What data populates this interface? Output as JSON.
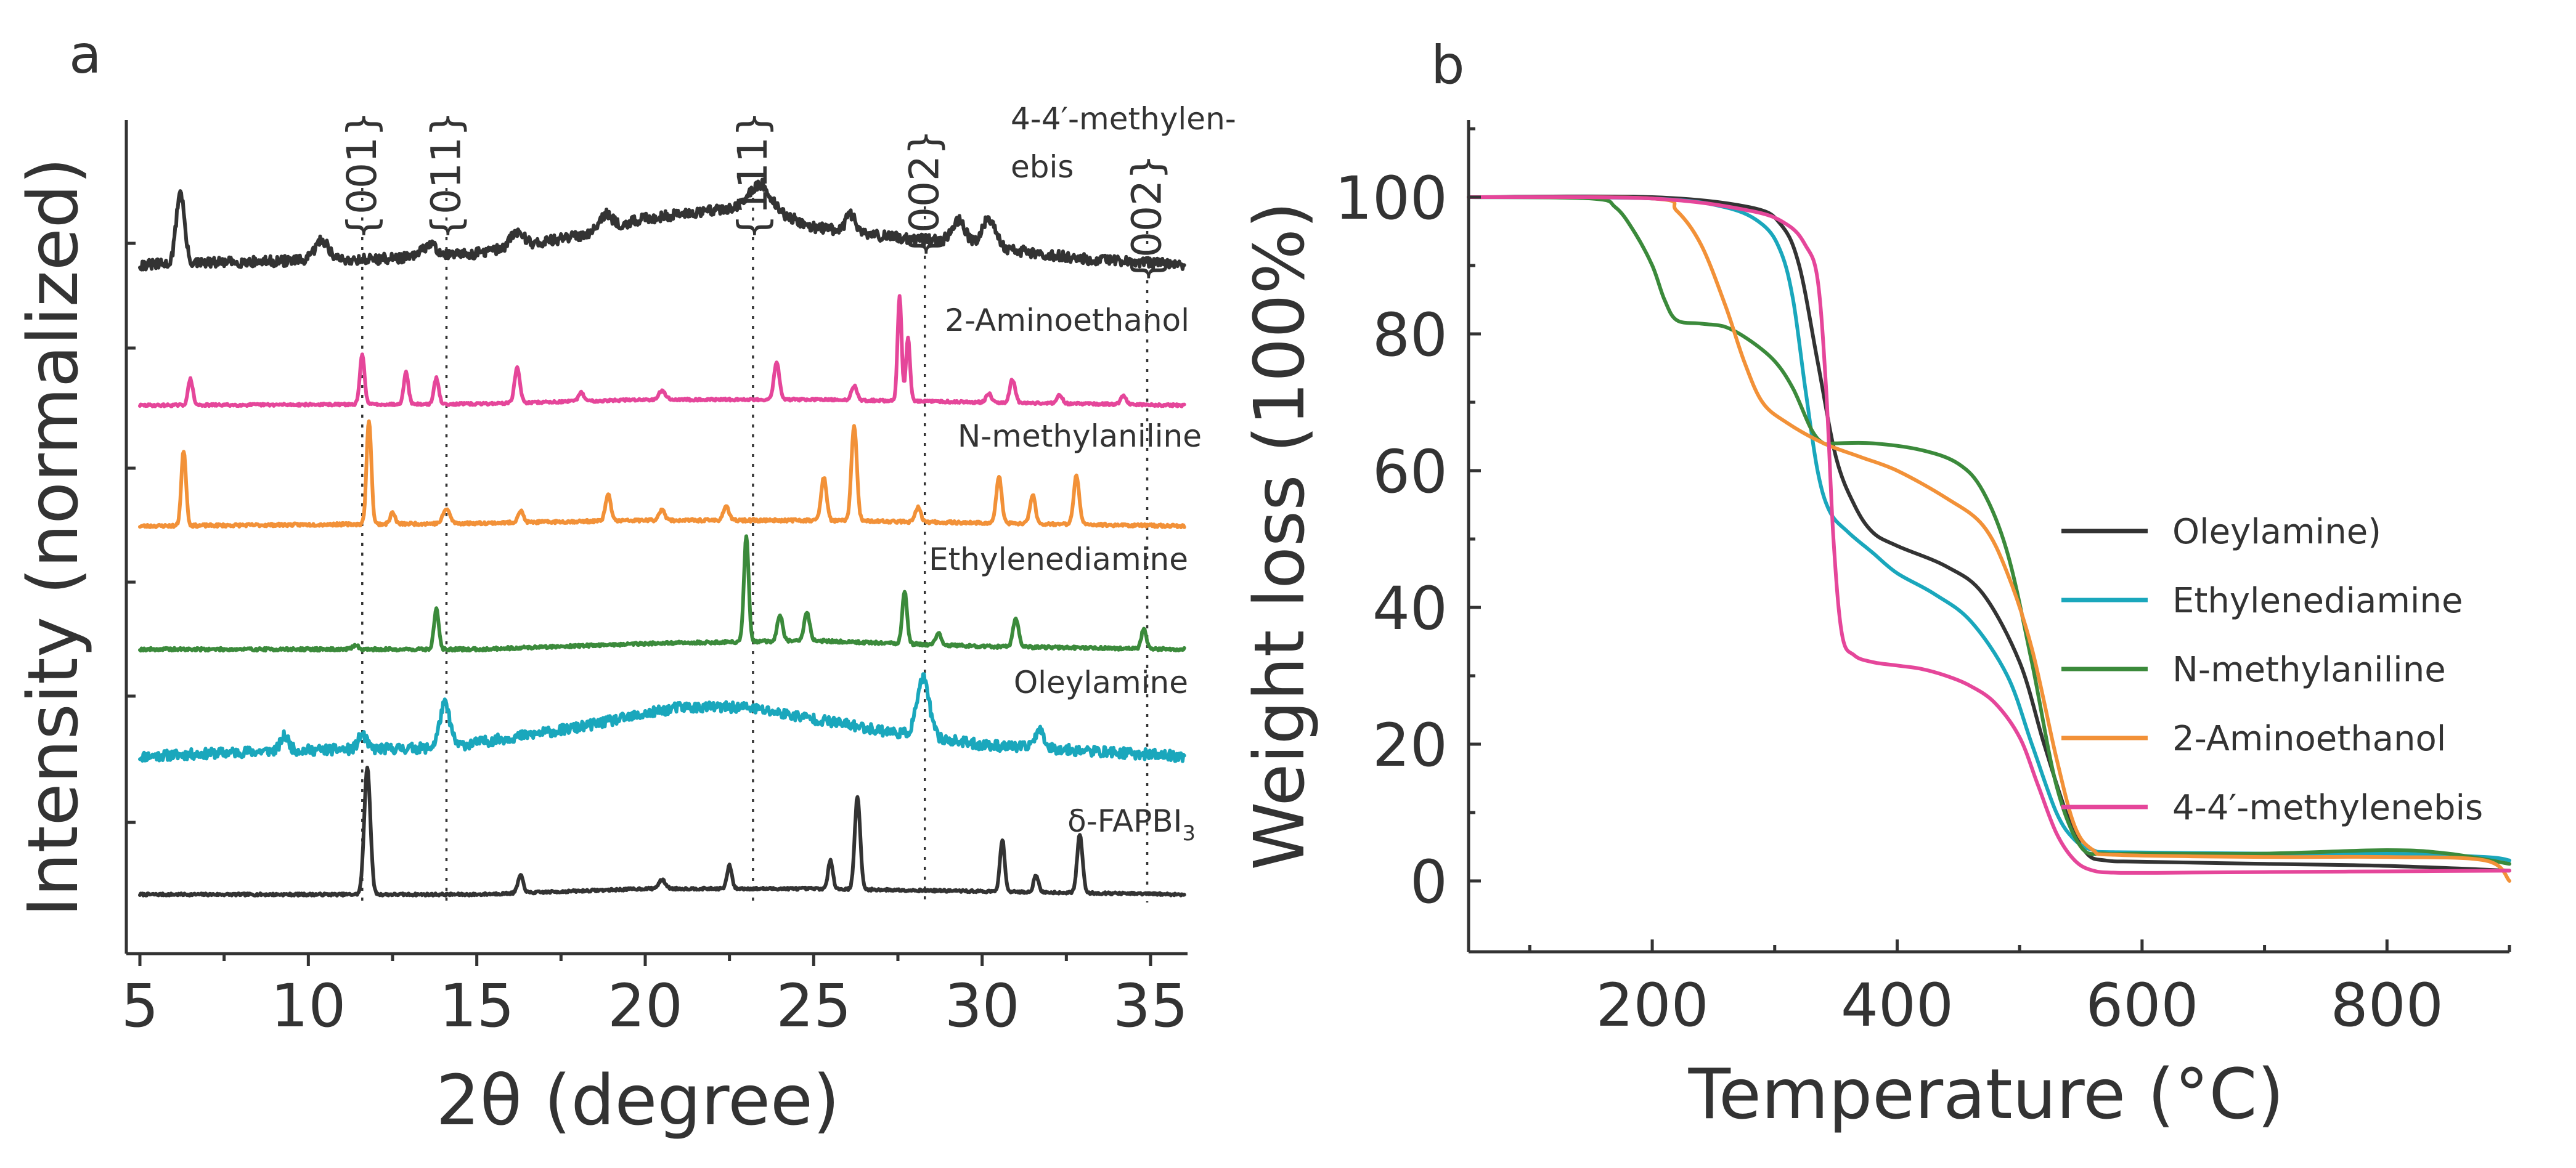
{
  "panels": {
    "a": {
      "label": "a"
    },
    "b": {
      "label": "b"
    }
  },
  "chart_data": [
    {
      "panel": "a",
      "type": "line",
      "title": "",
      "xlabel": "2θ (degree)",
      "ylabel": "Intensity (normalized)",
      "xlim": [
        4.8,
        36
      ],
      "xticks": [
        5,
        10,
        15,
        20,
        25,
        30,
        35
      ],
      "xtick_labels": [
        "5",
        "10",
        "15",
        "20",
        "25",
        "30",
        "35"
      ],
      "yticks_shown": false,
      "reference_lines": [
        {
          "x": 11.6,
          "label": "{001}"
        },
        {
          "x": 14.1,
          "label": "{011}"
        },
        {
          "x": 23.2,
          "label": "{111}"
        },
        {
          "x": 28.3,
          "label": "{002}"
        },
        {
          "x": 34.9,
          "label": "{002}"
        }
      ],
      "series": [
        {
          "name": "δ-FAPBI3",
          "label_parts": [
            "δ-FAPBI",
            "3"
          ],
          "color": "#333333",
          "baseline_rel": 0.0,
          "baseline_profile": [
            [
              5,
              0
            ],
            [
              15,
              0
            ],
            [
              20,
              0.02
            ],
            [
              25,
              0.02
            ],
            [
              36,
              0
            ]
          ],
          "peaks": [
            [
              11.75,
              0.44,
              0.09
            ],
            [
              16.3,
              0.06,
              0.08
            ],
            [
              20.5,
              0.03,
              0.1
            ],
            [
              22.5,
              0.08,
              0.07
            ],
            [
              25.5,
              0.1,
              0.07
            ],
            [
              26.3,
              0.32,
              0.08
            ],
            [
              30.6,
              0.18,
              0.07
            ],
            [
              31.6,
              0.06,
              0.07
            ],
            [
              32.9,
              0.2,
              0.08
            ]
          ],
          "noise": 0.004,
          "seed": 7
        },
        {
          "name": "Oleylamine",
          "label_parts": [
            "Oleylamine"
          ],
          "color": "#1AA7BC",
          "baseline_rel": 0.43,
          "baseline_profile": [
            [
              5,
              0
            ],
            [
              9,
              0.02
            ],
            [
              14,
              0.03
            ],
            [
              18,
              0.1
            ],
            [
              21,
              0.17
            ],
            [
              23,
              0.17
            ],
            [
              25,
              0.13
            ],
            [
              27,
              0.09
            ],
            [
              30,
              0.04
            ],
            [
              33,
              0.02
            ],
            [
              36,
              0
            ]
          ],
          "peaks": [
            [
              9.3,
              0.05,
              0.12
            ],
            [
              11.6,
              0.05,
              0.12
            ],
            [
              14.05,
              0.15,
              0.15
            ],
            [
              28.25,
              0.2,
              0.18
            ],
            [
              31.7,
              0.06,
              0.15
            ]
          ],
          "noise": 0.018,
          "seed": 11
        },
        {
          "name": "Ethylenediamine",
          "label_parts": [
            "Ethylenediamine"
          ],
          "color": "#3B8A3B",
          "baseline_rel": 0.86,
          "baseline_profile": [
            [
              5,
              0
            ],
            [
              15,
              0
            ],
            [
              20,
              0.02
            ],
            [
              25,
              0.03
            ],
            [
              30,
              0.01
            ],
            [
              36,
              0
            ]
          ],
          "peaks": [
            [
              11.4,
              0.015,
              0.08
            ],
            [
              13.8,
              0.14,
              0.07
            ],
            [
              23.0,
              0.36,
              0.07
            ],
            [
              24.0,
              0.09,
              0.08
            ],
            [
              24.8,
              0.1,
              0.08
            ],
            [
              27.7,
              0.18,
              0.07
            ],
            [
              28.7,
              0.04,
              0.08
            ],
            [
              31.0,
              0.1,
              0.08
            ],
            [
              34.8,
              0.07,
              0.07
            ]
          ],
          "noise": 0.005,
          "seed": 19
        },
        {
          "name": "N-methylaniline",
          "label_parts": [
            "N-methylaniline"
          ],
          "color": "#F29138",
          "baseline_rel": 1.3,
          "baseline_profile": [
            [
              5,
              0
            ],
            [
              15,
              0.01
            ],
            [
              20,
              0.02
            ],
            [
              25,
              0.02
            ],
            [
              36,
              0
            ]
          ],
          "peaks": [
            [
              6.3,
              0.26,
              0.07
            ],
            [
              11.8,
              0.36,
              0.07
            ],
            [
              12.5,
              0.04,
              0.07
            ],
            [
              14.1,
              0.05,
              0.1
            ],
            [
              16.3,
              0.04,
              0.08
            ],
            [
              18.9,
              0.09,
              0.08
            ],
            [
              20.5,
              0.04,
              0.08
            ],
            [
              22.4,
              0.05,
              0.08
            ],
            [
              25.3,
              0.15,
              0.08
            ],
            [
              26.2,
              0.33,
              0.08
            ],
            [
              28.1,
              0.05,
              0.08
            ],
            [
              30.5,
              0.16,
              0.08
            ],
            [
              31.5,
              0.1,
              0.08
            ],
            [
              32.8,
              0.17,
              0.08
            ]
          ],
          "noise": 0.005,
          "seed": 23
        },
        {
          "name": "2-Aminoethanol",
          "label_parts": [
            "2-Aminoethanol"
          ],
          "color": "#E5469A",
          "baseline_rel": 1.75,
          "baseline_profile": [
            [
              5,
              0
            ],
            [
              15,
              0.005
            ],
            [
              20,
              0.02
            ],
            [
              25,
              0.02
            ],
            [
              36,
              0
            ]
          ],
          "peaks": [
            [
              6.5,
              0.09,
              0.07
            ],
            [
              11.6,
              0.17,
              0.07
            ],
            [
              12.9,
              0.11,
              0.07
            ],
            [
              13.8,
              0.09,
              0.07
            ],
            [
              16.2,
              0.12,
              0.08
            ],
            [
              18.1,
              0.03,
              0.08
            ],
            [
              20.5,
              0.03,
              0.1
            ],
            [
              23.9,
              0.13,
              0.08
            ],
            [
              26.2,
              0.05,
              0.08
            ],
            [
              27.55,
              0.36,
              0.06
            ],
            [
              27.8,
              0.22,
              0.06
            ],
            [
              30.2,
              0.03,
              0.08
            ],
            [
              30.9,
              0.08,
              0.08
            ],
            [
              32.3,
              0.03,
              0.08
            ],
            [
              34.2,
              0.03,
              0.08
            ]
          ],
          "noise": 0.004,
          "seed": 29
        },
        {
          "name": "4-4′-methylenebis",
          "label_parts": [
            "4-4′-methylen-",
            "ebis"
          ],
          "color": "#333333",
          "baseline_rel": 2.2,
          "baseline_profile": [
            [
              5,
              0
            ],
            [
              8,
              0.01
            ],
            [
              12,
              0.02
            ],
            [
              15,
              0.04
            ],
            [
              18,
              0.1
            ],
            [
              20,
              0.16
            ],
            [
              22,
              0.19
            ],
            [
              23.5,
              0.2
            ],
            [
              25,
              0.13
            ],
            [
              27,
              0.1
            ],
            [
              29,
              0.08
            ],
            [
              31,
              0.05
            ],
            [
              33,
              0.02
            ],
            [
              36,
              0
            ]
          ],
          "peaks": [
            [
              6.2,
              0.25,
              0.12
            ],
            [
              10.4,
              0.07,
              0.2
            ],
            [
              13.6,
              0.04,
              0.2
            ],
            [
              16.2,
              0.05,
              0.2
            ],
            [
              18.8,
              0.05,
              0.2
            ],
            [
              23.4,
              0.08,
              0.3
            ],
            [
              26.1,
              0.06,
              0.15
            ],
            [
              29.3,
              0.08,
              0.2
            ],
            [
              30.2,
              0.1,
              0.2
            ]
          ],
          "noise": 0.018,
          "seed": 31
        }
      ]
    },
    {
      "panel": "b",
      "type": "line",
      "title": "",
      "xlabel": "Temperature (°C)",
      "ylabel": "Weight loss (100%)",
      "xlim": [
        50,
        900
      ],
      "ylim": [
        -10,
        110
      ],
      "xticks": [
        200,
        400,
        600,
        800
      ],
      "xtick_labels": [
        "200",
        "400",
        "600",
        "800"
      ],
      "yticks": [
        0,
        20,
        40,
        60,
        80,
        100
      ],
      "ytick_labels": [
        "0",
        "20",
        "40",
        "60",
        "80",
        "100"
      ],
      "legend_position": "right",
      "series": [
        {
          "name": "Oleylamine)",
          "color": "#333333",
          "x": [
            50,
            200,
            280,
            305,
            320,
            335,
            350,
            365,
            380,
            400,
            440,
            470,
            500,
            520,
            540,
            555,
            570,
            600,
            700,
            800,
            900
          ],
          "y": [
            100,
            100,
            98.5,
            96,
            90,
            76,
            62,
            55,
            51,
            49,
            46,
            42,
            32,
            20,
            9,
            4,
            3,
            2.8,
            2.5,
            2.2,
            1.5
          ]
        },
        {
          "name": "Ethylenediamine",
          "color": "#1AA7BC",
          "x": [
            50,
            200,
            260,
            290,
            305,
            315,
            325,
            335,
            345,
            360,
            380,
            400,
            430,
            460,
            490,
            510,
            530,
            545,
            560,
            580,
            700,
            800,
            880,
            900
          ],
          "y": [
            100,
            99.8,
            98.5,
            96,
            92,
            85,
            72,
            60,
            54,
            51,
            48,
            45,
            42,
            38,
            30,
            20,
            10,
            6,
            4.5,
            4.2,
            4,
            4,
            3.5,
            3
          ]
        },
        {
          "name": "N-methylaniline",
          "color": "#3B8A3B",
          "x": [
            50,
            150,
            170,
            185,
            200,
            210,
            220,
            240,
            260,
            280,
            300,
            315,
            330,
            340,
            350,
            380,
            420,
            450,
            470,
            490,
            510,
            530,
            550,
            570,
            600,
            700,
            800,
            850,
            900
          ],
          "y": [
            100,
            99.8,
            98.5,
            95,
            90,
            85,
            82,
            81.5,
            81,
            79,
            76,
            72,
            66,
            64,
            64,
            64,
            63,
            61,
            57,
            48,
            32,
            14,
            5,
            4,
            4,
            4,
            4.5,
            4,
            2.5
          ]
        },
        {
          "name": "2-Aminoethanol",
          "color": "#F29138",
          "x": [
            50,
            200,
            220,
            240,
            260,
            275,
            290,
            310,
            340,
            370,
            400,
            440,
            470,
            490,
            510,
            530,
            545,
            560,
            580,
            700,
            800,
            880,
            900
          ],
          "y": [
            100,
            99.8,
            98,
            93,
            84,
            76,
            70,
            67,
            64,
            62,
            60,
            56,
            52,
            45,
            34,
            18,
            8,
            4.5,
            3.8,
            3.5,
            3.5,
            3,
            0
          ]
        },
        {
          "name": "4-4′-methylenebis",
          "color": "#E5469A",
          "x": [
            50,
            200,
            280,
            310,
            325,
            335,
            342,
            348,
            355,
            365,
            380,
            400,
            420,
            440,
            460,
            480,
            500,
            515,
            530,
            545,
            560,
            580,
            620,
            700,
            800,
            900
          ],
          "y": [
            100,
            99.8,
            98,
            96,
            93,
            88,
            72,
            50,
            36,
            33,
            32,
            31.5,
            31,
            30,
            28.5,
            26,
            21,
            14,
            7,
            3,
            1.5,
            1.2,
            1.2,
            1.3,
            1.4,
            1.5
          ]
        }
      ]
    }
  ]
}
